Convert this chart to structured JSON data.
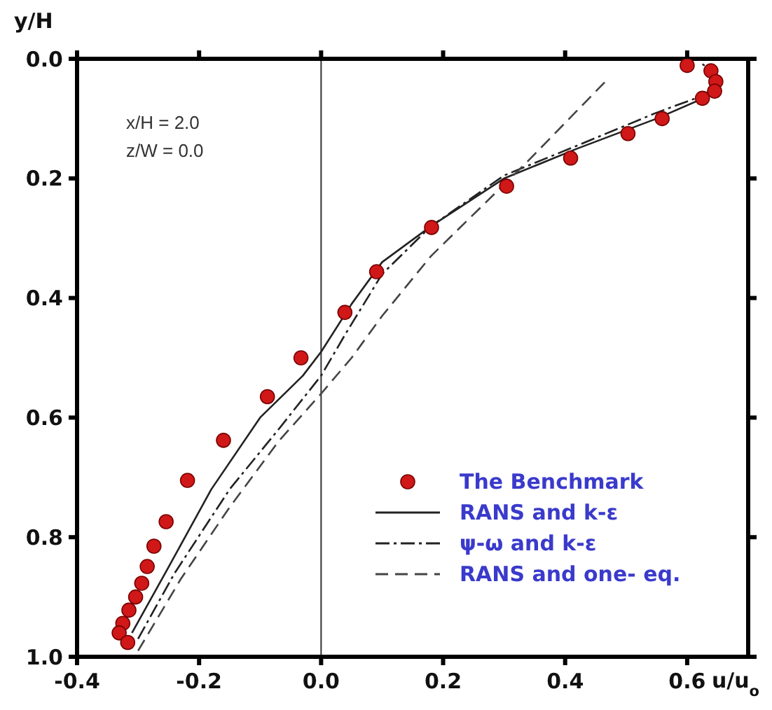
{
  "chart_data": {
    "type": "line",
    "xlabel": "u/u$_{o}$",
    "ylabel": "y/H",
    "annotations": [
      "x/H = 2.0",
      "z/W = 0.0"
    ],
    "xlim": [
      -0.4,
      0.7
    ],
    "xticks": [
      -0.4,
      -0.2,
      {
        "value": 0,
        "label": "0.0"
      },
      0.2,
      0.4,
      0.6
    ],
    "ylim": [
      1.0,
      0.0
    ],
    "yticks": [
      {
        "value": 0,
        "label": "0.0"
      },
      0.2,
      0.4,
      0.6,
      0.8,
      {
        "value": 1,
        "label": "1.0"
      }
    ],
    "legend": "bottom right",
    "ref_lines": [
      {
        "axis": "x",
        "value": 0.0,
        "color": "#333333"
      }
    ],
    "series": [
      {
        "name": "The Benchmark",
        "type": "scatter",
        "marker": "circle",
        "color": "#d01818",
        "x": [
          0.6,
          0.639,
          0.647,
          0.645,
          0.625,
          0.559,
          0.503,
          0.409,
          0.304,
          0.181,
          0.091,
          0.039,
          -0.033,
          -0.088,
          -0.16,
          -0.219,
          -0.254,
          -0.274,
          -0.285,
          -0.294,
          -0.304,
          -0.315,
          -0.325,
          -0.331,
          -0.317
        ],
        "values": [
          0.011,
          0.02,
          0.038,
          0.054,
          0.066,
          0.1,
          0.125,
          0.166,
          0.213,
          0.282,
          0.356,
          0.424,
          0.5,
          0.565,
          0.638,
          0.705,
          0.774,
          0.815,
          0.849,
          0.877,
          0.9,
          0.922,
          0.944,
          0.96,
          0.976
        ]
      },
      {
        "name": "RANS and k-ε",
        "type": "line",
        "marker": "none",
        "line_style": "solid",
        "color": "#222222",
        "x": [
          -0.31,
          -0.25,
          -0.18,
          -0.1,
          -0.03,
          0.0,
          0.05,
          0.1,
          0.18,
          0.3,
          0.42,
          0.55,
          0.64,
          0.65,
          0.64
        ],
        "values": [
          0.96,
          0.85,
          0.72,
          0.6,
          0.53,
          0.49,
          0.41,
          0.34,
          0.28,
          0.2,
          0.15,
          0.1,
          0.06,
          0.045,
          0.035
        ]
      },
      {
        "name": "ψ-ω and k-ε",
        "type": "line",
        "marker": "none",
        "line_style": "dashdot",
        "color": "#222222",
        "x": [
          -0.3,
          -0.24,
          -0.15,
          -0.07,
          0.0,
          0.04,
          0.1,
          0.18,
          0.3,
          0.42,
          0.55,
          0.63,
          0.645,
          0.64,
          0.62
        ],
        "values": [
          0.97,
          0.86,
          0.72,
          0.62,
          0.53,
          0.46,
          0.36,
          0.28,
          0.195,
          0.145,
          0.09,
          0.06,
          0.04,
          0.02,
          0.005
        ]
      },
      {
        "name": "RANS and one- eq.",
        "type": "line",
        "marker": "none",
        "line_style": "dashed",
        "color": "#444444",
        "x": [
          -0.3,
          -0.23,
          -0.15,
          -0.07,
          0.0,
          0.05,
          0.1,
          0.18,
          0.26,
          0.34,
          0.465
        ],
        "values": [
          0.99,
          0.87,
          0.75,
          0.64,
          0.56,
          0.5,
          0.43,
          0.33,
          0.25,
          0.17,
          0.039
        ]
      }
    ]
  }
}
